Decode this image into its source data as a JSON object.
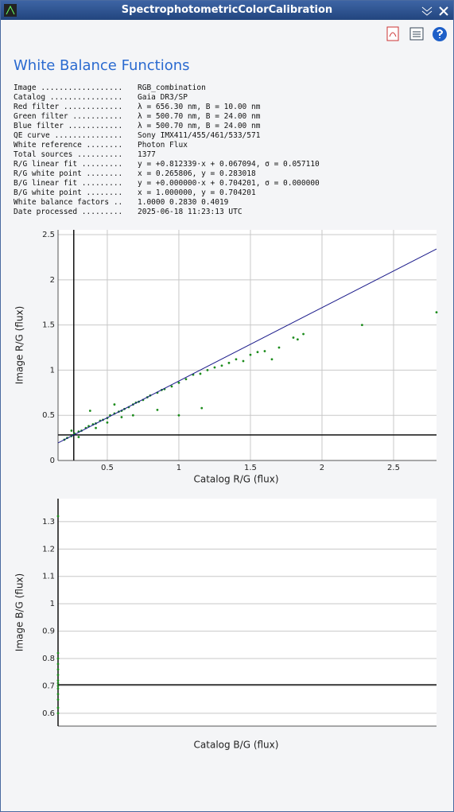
{
  "window": {
    "title": "SpectrophotometricColorCalibration"
  },
  "heading": "White Balance Functions",
  "info": [
    {
      "label": "Image ..................",
      "value": "RGB_combination"
    },
    {
      "label": "Catalog ................",
      "value": "Gaia DR3/SP"
    },
    {
      "label": "Red filter .............",
      "value": "λ = 656.30 nm, B = 10.00 nm"
    },
    {
      "label": "Green filter ...........",
      "value": "λ = 500.70 nm, B = 24.00 nm"
    },
    {
      "label": "Blue filter ............",
      "value": "λ = 500.70 nm, B = 24.00 nm"
    },
    {
      "label": "QE curve ...............",
      "value": "Sony IMX411/455/461/533/571"
    },
    {
      "label": "White reference ........",
      "value": "Photon Flux"
    },
    {
      "label": "Total sources ..........",
      "value": "1377"
    },
    {
      "label": "R/G linear fit .........",
      "value": "y = +0.812339·x + 0.067094, σ = 0.057110"
    },
    {
      "label": "R/G white point ........",
      "value": "x = 0.265806, y = 0.283018"
    },
    {
      "label": "B/G linear fit .........",
      "value": "y = +0.000000·x + 0.704201, σ = 0.000000"
    },
    {
      "label": "B/G white point ........",
      "value": "x = 1.000000, y = 0.704201"
    },
    {
      "label": "White balance factors ..",
      "value": "1.0000 0.2830 0.4019"
    },
    {
      "label": "Date processed .........",
      "value": "2025-06-18 11:23:13 UTC"
    }
  ],
  "chart_data": [
    {
      "type": "scatter",
      "x_label": "Catalog R/G (flux)",
      "y_label": "Image R/G (flux)",
      "xlim": [
        0.156,
        2.8
      ],
      "ylim": [
        0,
        2.553
      ],
      "xticks": [
        0.5,
        1,
        1.5,
        2,
        2.5
      ],
      "yticks": [
        0,
        0.5,
        1,
        1.5,
        2,
        2.5
      ],
      "grid": true,
      "color": "#1c8c1c",
      "fit_color": "#1a1a8a",
      "fit_line": {
        "slope": 0.812339,
        "intercept": 0.067094
      },
      "white_point": {
        "x": 0.265806,
        "y": 0.283018
      },
      "x": [
        0.2,
        0.22,
        0.25,
        0.27,
        0.3,
        0.32,
        0.35,
        0.37,
        0.4,
        0.42,
        0.45,
        0.47,
        0.5,
        0.52,
        0.55,
        0.58,
        0.6,
        0.62,
        0.65,
        0.68,
        0.7,
        0.72,
        0.75,
        0.78,
        0.8,
        0.85,
        0.88,
        0.9,
        0.95,
        1.0,
        1.05,
        1.1,
        1.15,
        1.2,
        1.25,
        1.3,
        1.35,
        1.4,
        1.45,
        1.5,
        1.55,
        1.6,
        1.65,
        1.7,
        1.8,
        1.83,
        1.87,
        2.28,
        2.8,
        0.38,
        0.55,
        0.68,
        0.85,
        1.0,
        1.16,
        0.42,
        0.6,
        0.3,
        0.25,
        0.5
      ],
      "y": [
        0.23,
        0.25,
        0.27,
        0.3,
        0.32,
        0.33,
        0.36,
        0.38,
        0.4,
        0.41,
        0.44,
        0.45,
        0.47,
        0.5,
        0.52,
        0.54,
        0.55,
        0.57,
        0.59,
        0.62,
        0.64,
        0.65,
        0.67,
        0.7,
        0.72,
        0.75,
        0.78,
        0.79,
        0.82,
        0.86,
        0.9,
        0.95,
        0.96,
        1.0,
        1.03,
        1.05,
        1.08,
        1.12,
        1.1,
        1.17,
        1.2,
        1.21,
        1.12,
        1.25,
        1.36,
        1.34,
        1.4,
        1.5,
        1.64,
        0.55,
        0.62,
        0.5,
        0.56,
        0.5,
        0.58,
        0.36,
        0.48,
        0.26,
        0.33,
        0.42
      ]
    },
    {
      "type": "scatter",
      "x_label": "Catalog B/G (flux)",
      "y_label": "Image B/G (flux)",
      "xlim": [
        1,
        1.5
      ],
      "ylim": [
        0.553,
        1.384
      ],
      "xticks": [],
      "yticks": [
        0.6,
        0.7,
        0.8,
        0.9,
        1,
        1.1,
        1.2,
        1.3
      ],
      "grid": true,
      "color": "#1c8c1c",
      "fit_color": "#1a1a1a",
      "fit_line": {
        "slope": 0,
        "intercept": 0.704201
      },
      "white_point": {
        "x": 1,
        "y": 0.704201
      },
      "x": [
        1,
        1,
        1,
        1,
        1,
        1,
        1,
        1,
        1,
        1,
        1,
        1,
        1,
        1
      ],
      "y": [
        0.6,
        0.62,
        0.65,
        0.67,
        0.69,
        0.7,
        0.71,
        0.72,
        0.74,
        0.76,
        0.78,
        0.8,
        0.82,
        1.32
      ]
    }
  ]
}
